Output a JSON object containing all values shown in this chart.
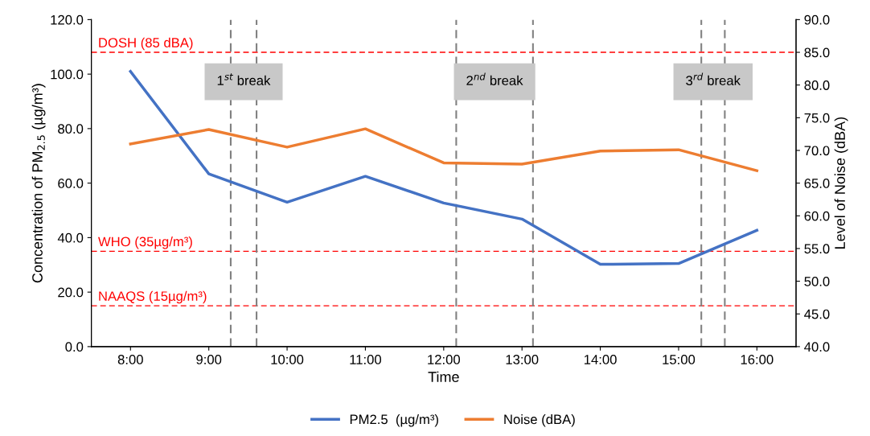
{
  "chart_data": {
    "type": "line",
    "xlabel": "Time",
    "ylabel": "Concentration of PM$_{2.5}$ (µg/m³)",
    "y2label": "Level of Noise (dBA)",
    "x": [
      8,
      9,
      10,
      11,
      12,
      13,
      14,
      15,
      16
    ],
    "xlim": [
      7.5,
      16.5
    ],
    "xticks": [
      {
        "value": 8,
        "label": "8:00"
      },
      {
        "value": 9,
        "label": "9:00"
      },
      {
        "value": 10,
        "label": "10:00"
      },
      {
        "value": 11,
        "label": "11:00"
      },
      {
        "value": 12,
        "label": "12:00"
      },
      {
        "value": 13,
        "label": "13:00"
      },
      {
        "value": 14,
        "label": "14:00"
      },
      {
        "value": 15,
        "label": "15:00"
      },
      {
        "value": 16,
        "label": "16:00"
      }
    ],
    "ylim": [
      0,
      120
    ],
    "yticks": [
      {
        "value": 0,
        "label": "0.0"
      },
      {
        "value": 20,
        "label": "20.0"
      },
      {
        "value": 40,
        "label": "40.0"
      },
      {
        "value": 60,
        "label": "60.0"
      },
      {
        "value": 80,
        "label": "80.0"
      },
      {
        "value": 100,
        "label": "100.0"
      },
      {
        "value": 120,
        "label": "120.0"
      }
    ],
    "y2lim": [
      40,
      90
    ],
    "y2ticks": [
      {
        "value": 40,
        "label": "40.0"
      },
      {
        "value": 45,
        "label": "45.0"
      },
      {
        "value": 50,
        "label": "50.0"
      },
      {
        "value": 55,
        "label": "55.0"
      },
      {
        "value": 60,
        "label": "60.0"
      },
      {
        "value": 65,
        "label": "65.0"
      },
      {
        "value": 70,
        "label": "70.0"
      },
      {
        "value": 75,
        "label": "75.0"
      },
      {
        "value": 80,
        "label": "80.0"
      },
      {
        "value": 85,
        "label": "85.0"
      },
      {
        "value": 90,
        "label": "90.0"
      }
    ],
    "series": [
      {
        "name": "PM2.5  (µg/m³)",
        "color": "#4472c4",
        "values": [
          101.0,
          63.4,
          53.0,
          62.5,
          52.7,
          46.8,
          30.2,
          30.5,
          42.7
        ]
      },
      {
        "name": "Noise (dBA)",
        "color": "#ed7d31",
        "axis": "y2",
        "values": [
          71.0,
          73.2,
          70.5,
          73.3,
          68.1,
          67.9,
          69.9,
          70.1,
          66.9
        ]
      }
    ],
    "ref_lines": [
      {
        "axis": "y2",
        "value": 85,
        "label": "DOSH (85 dBA)",
        "color": "#ff0000",
        "line_style": "dashed"
      },
      {
        "axis": "y",
        "value": 35,
        "label": "WHO (35µg/m³)",
        "color": "#ff0000",
        "line_style": "dashed"
      },
      {
        "axis": "y",
        "value": 15,
        "label": "NAAQS (15µg/m³)",
        "color": "#ff0000",
        "line_style": "dashed"
      },
      {
        "axis": "x",
        "value": 9.28,
        "color": "#808080",
        "line_style": "dashed"
      },
      {
        "axis": "x",
        "value": 9.61,
        "color": "#808080",
        "line_style": "dashed"
      },
      {
        "axis": "x",
        "value": 12.16,
        "color": "#808080",
        "line_style": "dashed"
      },
      {
        "axis": "x",
        "value": 13.14,
        "color": "#808080",
        "line_style": "dashed"
      },
      {
        "axis": "x",
        "value": 15.29,
        "color": "#808080",
        "line_style": "dashed"
      },
      {
        "axis": "x",
        "value": 15.59,
        "color": "#808080",
        "line_style": "dashed"
      }
    ],
    "annotations": [
      "1$^{st}$ break",
      "2$^{nd}$ break",
      "3$^{rd}$ break"
    ],
    "legend": "bottom",
    "grid": false,
    "marker": "none",
    "line_style": "solid"
  }
}
